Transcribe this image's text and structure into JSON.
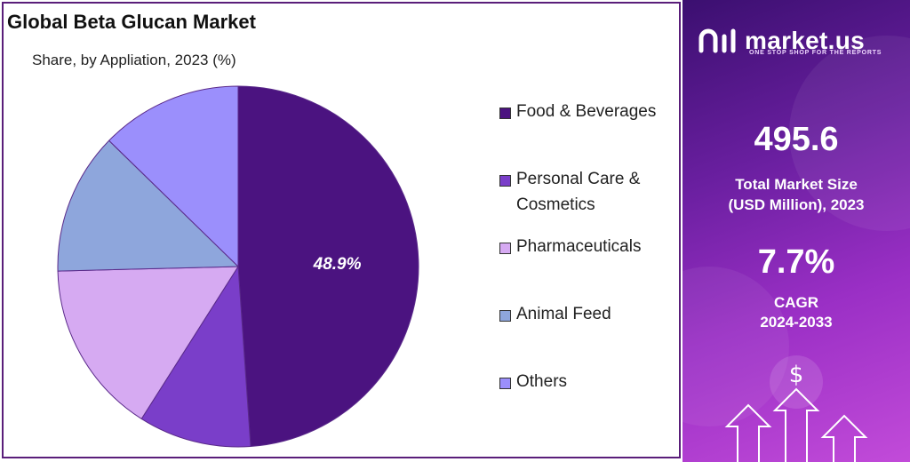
{
  "title": "Global Beta Glucan Market",
  "subtitle": "Share, by Appliation, 2023 (%)",
  "chart_data": {
    "type": "pie",
    "title": "Global Beta Glucan Market",
    "subtitle": "Share, by Appliation, 2023 (%)",
    "labels": [
      "Food & Beverages",
      "Personal Care & Cosmetics",
      "Pharmaceuticals",
      "Animal Feed",
      "Others"
    ],
    "values": [
      48.9,
      10.1,
      15.6,
      12.7,
      12.7
    ],
    "colors": [
      "#4b1380",
      "#7a3ec9",
      "#d6aaf2",
      "#8ea6dc",
      "#9b8ffc"
    ],
    "data_labels": [
      "48.9%",
      "",
      "",
      "",
      ""
    ],
    "legend_position": "right",
    "start_angle_deg": 0,
    "direction": "clockwise"
  },
  "legend": [
    {
      "label": "Food & Beverages",
      "color": "#4b1380"
    },
    {
      "label": "Personal Care & Cosmetics",
      "color": "#7a3ec9"
    },
    {
      "label": "Pharmaceuticals",
      "color": "#d6aaf2"
    },
    {
      "label": "Animal Feed",
      "color": "#8ea6dc"
    },
    {
      "label": "Others",
      "color": "#9b8ffc"
    }
  ],
  "sidebar": {
    "brand_name": "market.us",
    "brand_tagline": "ONE STOP SHOP FOR THE REPORTS",
    "market_size_value": "495.6",
    "market_size_label_line1": "Total Market Size",
    "market_size_label_line2": "(USD Million), 2023",
    "cagr_value": "7.7%",
    "cagr_label_line1": "CAGR",
    "cagr_label_line2": "2024-2033",
    "currency_symbol": "$"
  }
}
